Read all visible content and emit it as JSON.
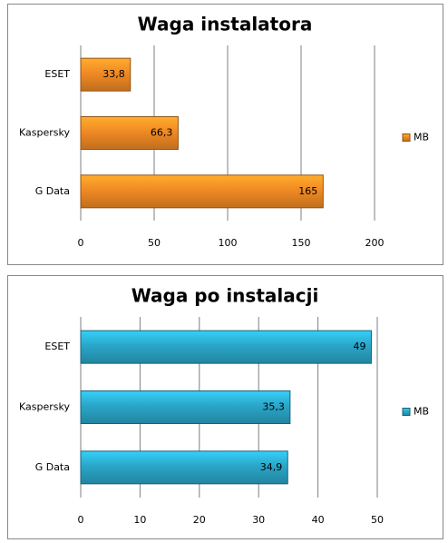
{
  "chart_data": [
    {
      "type": "bar",
      "title": "Waga instalatora",
      "categories": [
        "ESET",
        "Kaspersky",
        "G Data"
      ],
      "series": [
        {
          "name": "MB",
          "color": "#f08a24",
          "values": [
            33.8,
            66.3,
            165
          ],
          "value_labels": [
            "33,8",
            "66,3",
            "165"
          ]
        }
      ],
      "xlim": [
        0,
        200
      ],
      "xticks": [
        0,
        50,
        100,
        150,
        200
      ],
      "grid": true,
      "legend": "right"
    },
    {
      "type": "bar",
      "title": "Waga po instalacji",
      "categories": [
        "ESET",
        "Kaspersky",
        "G Data"
      ],
      "series": [
        {
          "name": "MB",
          "color": "#2aa6c8",
          "values": [
            49,
            35.3,
            34.9
          ],
          "value_labels": [
            "49",
            "35,3",
            "34,9"
          ]
        }
      ],
      "xlim": [
        0,
        50
      ],
      "xticks": [
        0,
        10,
        20,
        30,
        40,
        50
      ],
      "grid": true,
      "legend": "right"
    }
  ]
}
